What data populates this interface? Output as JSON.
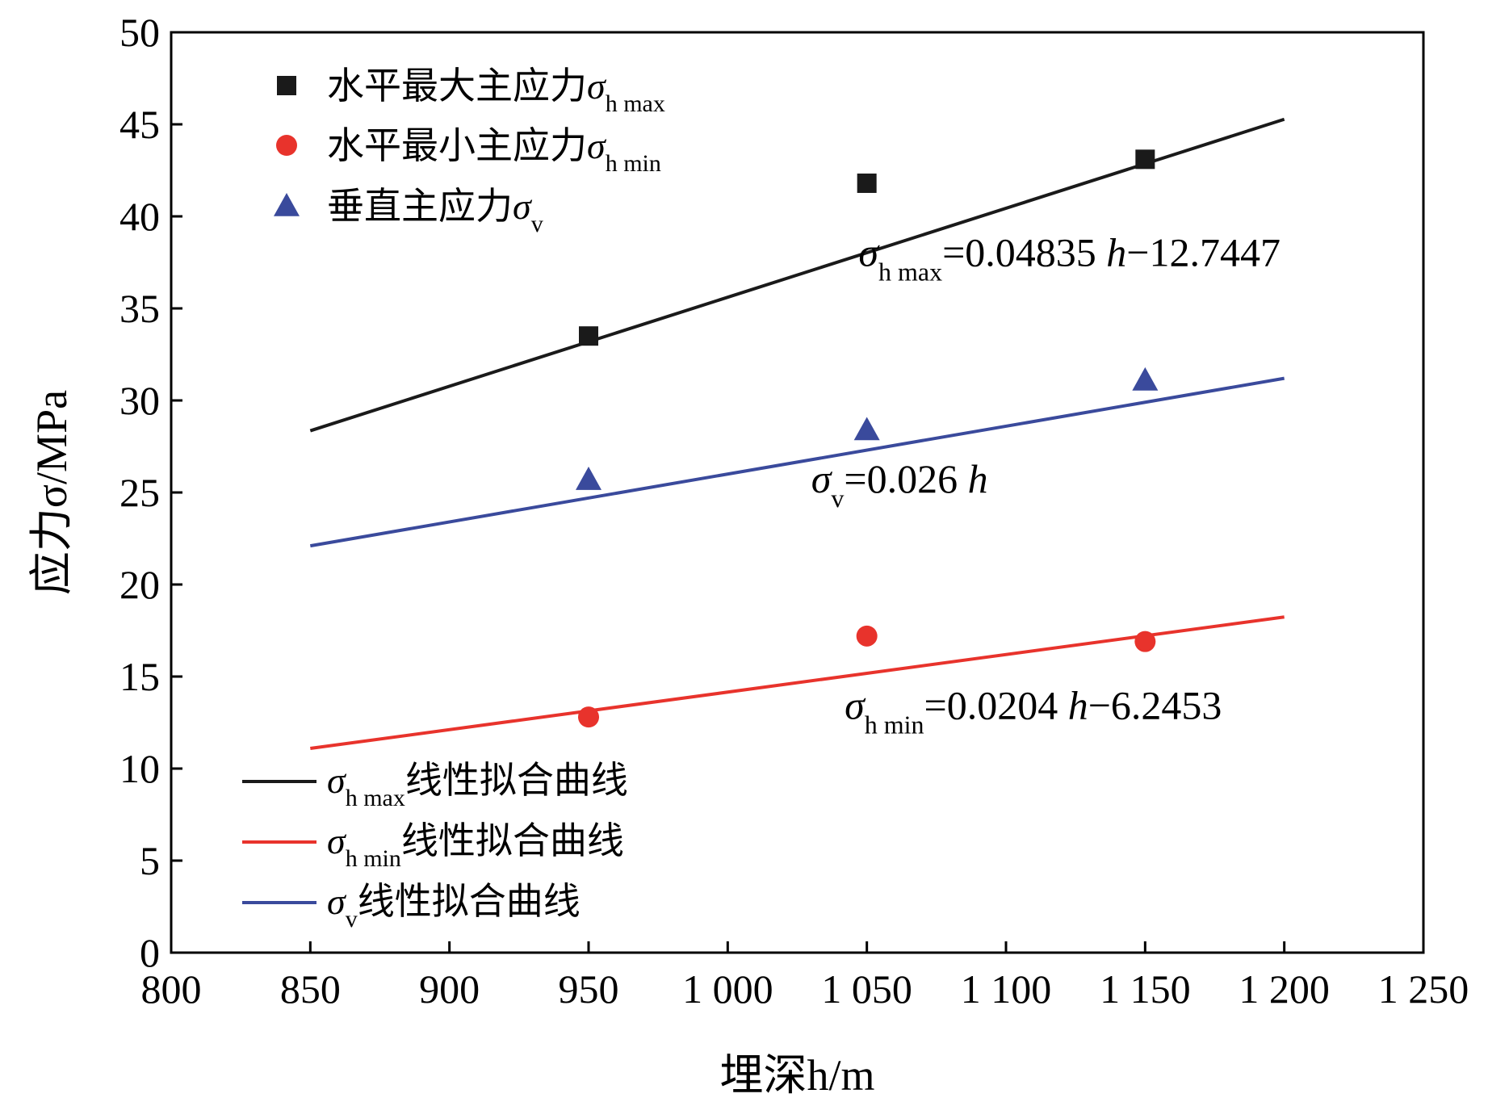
{
  "chart_data": {
    "type": "scatter",
    "xlabel": "埋深h/m",
    "ylabel": "应力σ/MPa",
    "xlim": [
      800,
      1250
    ],
    "ylim": [
      0,
      50
    ],
    "x_ticks": [
      800,
      850,
      900,
      950,
      1000,
      1050,
      1100,
      1150,
      1200,
      1250
    ],
    "x_tick_labels": [
      "800",
      "850",
      "900",
      "950",
      "1 000",
      "1 050",
      "1 100",
      "1 150",
      "1 200",
      "1 250"
    ],
    "y_ticks": [
      0,
      5,
      10,
      15,
      20,
      25,
      30,
      35,
      40,
      45,
      50
    ],
    "y_tick_labels": [
      "0",
      "5",
      "10",
      "15",
      "20",
      "25",
      "30",
      "35",
      "40",
      "45",
      "50"
    ],
    "grid": false,
    "legend_placement": "top-left",
    "series": [
      {
        "name": "水平最大主应力σh max",
        "name_main": "水平最大主应力σ",
        "name_sub": "h max",
        "marker": "square",
        "color": "#1a1a1a",
        "x": [
          950,
          1050,
          1150
        ],
        "y": [
          33.5,
          41.8,
          43.1
        ]
      },
      {
        "name": "水平最小主应力σh min",
        "name_main": "水平最小主应力σ",
        "name_sub": "h min",
        "marker": "circle",
        "color": "#e8332c",
        "x": [
          950,
          1050,
          1150
        ],
        "y": [
          12.8,
          17.2,
          16.9
        ]
      },
      {
        "name": "垂直主应力σv",
        "name_main": "垂直主应力σ",
        "name_sub": "v",
        "marker": "triangle",
        "color": "#3a4a9c",
        "x": [
          950,
          1050,
          1150
        ],
        "y": [
          25.7,
          28.4,
          31.1
        ]
      }
    ],
    "fit_lines": [
      {
        "name": "σh max线性拟合曲线",
        "legend_sym": "σ",
        "legend_sub": "h max",
        "legend_tail": "线性拟合曲线",
        "color": "#1a1a1a",
        "slope": 0.04835,
        "intercept": -12.7447,
        "x_range": [
          850,
          1200
        ]
      },
      {
        "name": "σh min线性拟合曲线",
        "legend_sym": "σ",
        "legend_sub": "h min",
        "legend_tail": "线性拟合曲线",
        "color": "#e8332c",
        "slope": 0.0204,
        "intercept": -6.2453,
        "x_range": [
          850,
          1200
        ]
      },
      {
        "name": "σv线性拟合曲线",
        "legend_sym": "σ",
        "legend_sub": "v",
        "legend_tail": "线性拟合曲线",
        "color": "#3a4a9c",
        "slope": 0.026,
        "intercept": 0,
        "x_range": [
          850,
          1200
        ]
      }
    ],
    "annotations": [
      {
        "sym": "σ",
        "sub": "h max",
        "rest_a": "=0.04835 ",
        "var": "h",
        "rest_b": "−12.7447",
        "anchor_x": 1047,
        "anchor_y": 37.3
      },
      {
        "sym": "σ",
        "sub": "v",
        "rest_a": "=0.026 ",
        "var": "h",
        "rest_b": "",
        "anchor_x": 1030,
        "anchor_y": 25.0
      },
      {
        "sym": "σ",
        "sub": "h min",
        "rest_a": "=0.0204 ",
        "var": "h",
        "rest_b": "−6.2453",
        "anchor_x": 1042,
        "anchor_y": 12.7
      }
    ]
  }
}
